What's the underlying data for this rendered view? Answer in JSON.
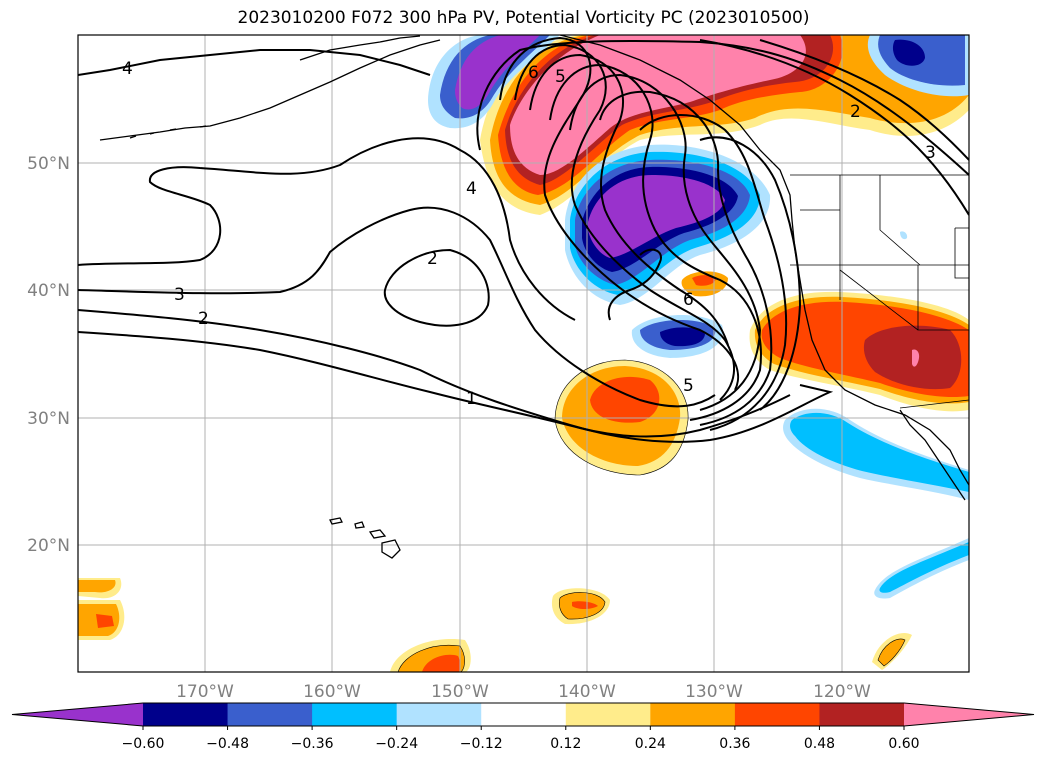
{
  "title": "2023010200 F072 300 hPa PV, Potential Vorticity PC (2023010500)",
  "map": {
    "projection": "PlateCarree",
    "lon_range": [
      -180,
      -110
    ],
    "lat_range": [
      10,
      60
    ],
    "lon_ticks": [
      "170°W",
      "160°W",
      "150°W",
      "140°W",
      "130°W",
      "120°W"
    ],
    "lat_ticks": [
      "50°N",
      "40°N",
      "30°N",
      "20°N"
    ],
    "gridlines": true,
    "coastlines": true,
    "borders": true
  },
  "contour_labels": [
    "4",
    "6",
    "5",
    "2",
    "3",
    "4",
    "2",
    "3",
    "2",
    "1",
    "6",
    "5"
  ],
  "colorbar": {
    "ticks": [
      "−0.60",
      "−0.48",
      "−0.36",
      "−0.24",
      "−0.12",
      "0.12",
      "0.24",
      "0.36",
      "0.48",
      "0.60"
    ],
    "colors": [
      "#9932cc",
      "#00008b",
      "#3a5fcd",
      "#00bfff",
      "#b0e2ff",
      "#ffffff",
      "#ffec8b",
      "#ffa500",
      "#ff4500",
      "#b22222",
      "#ff82ab"
    ],
    "extend": "both"
  }
}
